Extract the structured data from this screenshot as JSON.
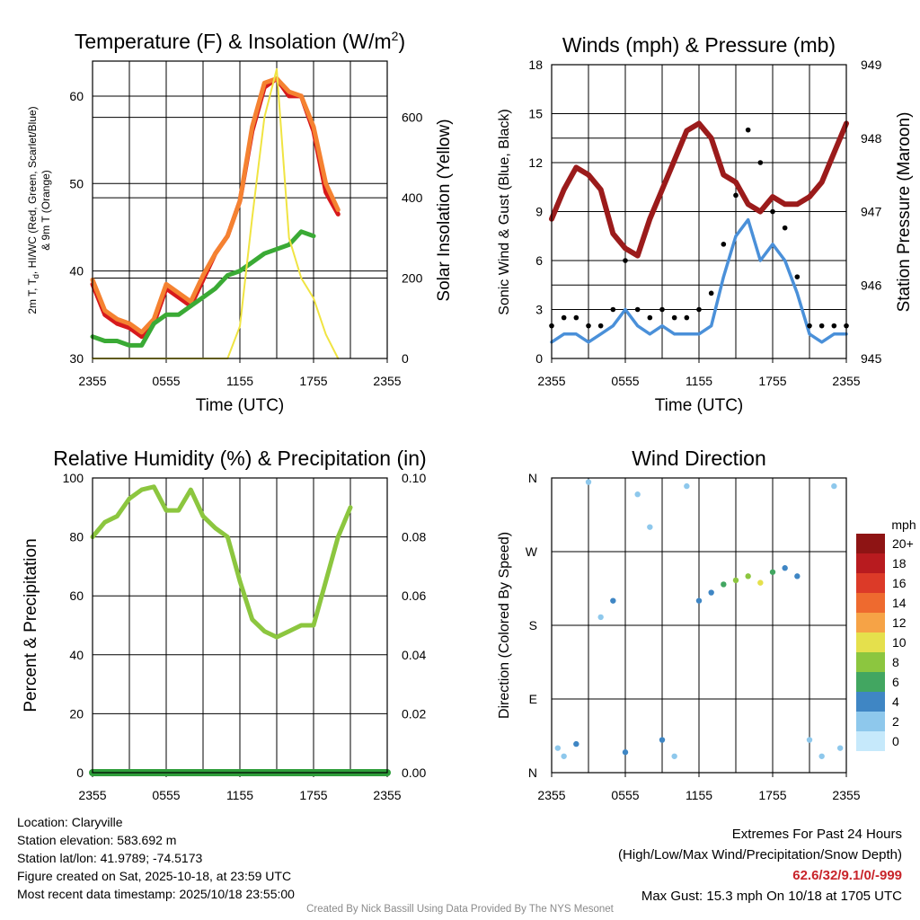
{
  "chart_data": [
    {
      "type": "line",
      "title": "Temperature (F) & Insolation (W/m",
      "title_sup": "2",
      "title_end": ")",
      "xlabel": "Time (UTC)",
      "ylabel_lines": [
        "2m T, T",
        "d",
        ", HI/WC (Red, Green, Scarlet/Blue)",
        "& 9m T (Orange)"
      ],
      "y2label": "Solar Insolation (Yellow)",
      "x_ticks": [
        "2355",
        "0555",
        "1155",
        "1755",
        "2355"
      ],
      "ylim": [
        30,
        64
      ],
      "y_ticks": [
        30,
        40,
        50,
        60
      ],
      "y2lim": [
        0,
        740
      ],
      "y2_ticks": [
        0,
        200,
        400,
        600
      ],
      "series": [
        {
          "name": "2m T",
          "color": "#d7191c",
          "x": [
            0,
            1,
            2,
            3,
            4,
            5,
            6,
            7,
            8,
            9,
            10,
            11,
            12,
            13,
            14,
            15,
            16,
            17,
            18,
            19,
            20,
            21,
            22,
            23,
            24
          ],
          "values": [
            38.5,
            35,
            34,
            33.5,
            32.5,
            34,
            38,
            37,
            36,
            39,
            42,
            44,
            48,
            56,
            61,
            62,
            60,
            60,
            56,
            49,
            46.5,
            null,
            null,
            null,
            null
          ]
        },
        {
          "name": "9m T",
          "color": "#f58231",
          "x": [
            0,
            1,
            2,
            3,
            4,
            5,
            6,
            7,
            8,
            9,
            10,
            11,
            12,
            13,
            14,
            15,
            16,
            17,
            18,
            19,
            20,
            21,
            22,
            23,
            24
          ],
          "values": [
            39,
            35.5,
            34.5,
            34,
            33,
            34.5,
            38.5,
            37.5,
            36.5,
            39.5,
            42,
            44,
            48,
            56.5,
            61.5,
            62,
            60.5,
            60,
            56.5,
            50,
            47,
            null,
            null,
            null,
            null
          ]
        },
        {
          "name": "Td",
          "color": "#3aaa35",
          "x": [
            0,
            1,
            2,
            3,
            4,
            5,
            6,
            7,
            8,
            9,
            10,
            11,
            12,
            13,
            14,
            15,
            16,
            17,
            18,
            19,
            20,
            21,
            22,
            23,
            24
          ],
          "values": [
            32.5,
            32,
            32,
            31.5,
            31.5,
            34,
            35,
            35,
            36,
            37,
            38,
            39.5,
            40,
            41,
            42,
            42.5,
            43,
            44.5,
            44,
            null,
            null,
            null,
            null,
            null,
            null
          ]
        },
        {
          "name": "Solar Insolation",
          "color": "#f0e442",
          "axis": "y2",
          "x": [
            0,
            1,
            2,
            3,
            4,
            5,
            6,
            7,
            8,
            9,
            10,
            11,
            12,
            13,
            14,
            15,
            16,
            17,
            18,
            19,
            20,
            21,
            22,
            23,
            24
          ],
          "values": [
            0,
            0,
            0,
            0,
            0,
            0,
            0,
            0,
            0,
            0,
            0,
            0,
            80,
            350,
            600,
            720,
            300,
            200,
            150,
            60,
            0,
            null,
            null,
            null,
            null
          ]
        }
      ]
    },
    {
      "type": "line",
      "title": "Winds (mph) & Pressure (mb)",
      "xlabel": "Time (UTC)",
      "ylabel": "Sonic Wind & Gust (Blue, Black)",
      "y2label": "Station Pressure (Maroon)",
      "x_ticks": [
        "2355",
        "0555",
        "1155",
        "1755",
        "2355"
      ],
      "ylim": [
        0,
        18
      ],
      "y_ticks": [
        0,
        3,
        6,
        9,
        12,
        15,
        18
      ],
      "y2lim": [
        945,
        949
      ],
      "y2_ticks": [
        945,
        946,
        947,
        948,
        949
      ],
      "series": [
        {
          "name": "Sonic Wind",
          "color": "#4a90d9",
          "x": [
            0,
            1,
            2,
            3,
            4,
            5,
            6,
            7,
            8,
            9,
            10,
            11,
            12,
            13,
            14,
            15,
            16,
            17,
            18,
            19,
            20,
            21,
            22,
            23,
            24
          ],
          "values": [
            1,
            1.5,
            1.5,
            1,
            1.5,
            2,
            3,
            2,
            1.5,
            2,
            1.5,
            1.5,
            1.5,
            2,
            5,
            7.5,
            8.5,
            6,
            7,
            6,
            4,
            1.5,
            1,
            1.5,
            1.5
          ]
        },
        {
          "name": "Gust",
          "color": "#000000",
          "kind": "scatter",
          "x": [
            0,
            1,
            2,
            3,
            4,
            5,
            6,
            7,
            8,
            9,
            10,
            11,
            12,
            13,
            14,
            15,
            16,
            17,
            18,
            19,
            20,
            21,
            22,
            23,
            24
          ],
          "values": [
            2,
            2.5,
            2.5,
            2,
            2,
            3,
            6,
            3,
            2.5,
            3,
            2.5,
            2.5,
            3,
            4,
            7,
            10,
            14,
            12,
            9,
            8,
            5,
            2,
            2,
            2,
            2
          ]
        },
        {
          "name": "Station Pressure",
          "color": "#9b1b1b",
          "axis": "y2",
          "x": [
            0,
            1,
            2,
            3,
            4,
            5,
            6,
            7,
            8,
            9,
            10,
            11,
            12,
            13,
            14,
            15,
            16,
            17,
            18,
            19,
            20,
            21,
            22,
            23,
            24
          ],
          "values": [
            946.9,
            947.3,
            947.6,
            947.5,
            947.3,
            946.7,
            946.5,
            946.4,
            946.9,
            947.3,
            947.7,
            948.1,
            948.2,
            948.0,
            947.5,
            947.4,
            947.1,
            947.0,
            947.2,
            947.1,
            947.1,
            947.2,
            947.4,
            947.8,
            948.2
          ]
        }
      ]
    },
    {
      "type": "line",
      "title": "Relative Humidity (%) & Precipitation (in)",
      "ylabel": "Percent & Precipitation",
      "x_ticks": [
        "2355",
        "0555",
        "1155",
        "1755",
        "2355"
      ],
      "ylim": [
        0,
        100
      ],
      "y_ticks": [
        0,
        20,
        40,
        60,
        80,
        100
      ],
      "y2lim": [
        0,
        0.1
      ],
      "y2_ticks": [
        "0.00",
        "0.02",
        "0.04",
        "0.06",
        "0.08",
        "0.10"
      ],
      "series": [
        {
          "name": "Relative Humidity",
          "color": "#8cc63f",
          "x": [
            0,
            1,
            2,
            3,
            4,
            5,
            6,
            7,
            8,
            9,
            10,
            11,
            12,
            13,
            14,
            15,
            16,
            17,
            18,
            19,
            20,
            21,
            22,
            23,
            24
          ],
          "values": [
            80,
            85,
            87,
            93,
            96,
            97,
            89,
            89,
            96,
            87,
            83,
            80,
            65,
            52,
            48,
            46,
            48,
            50,
            50,
            65,
            80,
            90,
            null,
            null,
            null
          ]
        },
        {
          "name": "Precipitation",
          "color": "#2e9e3a",
          "axis": "y2",
          "x": [
            0,
            24
          ],
          "values": [
            0,
            0
          ]
        }
      ]
    },
    {
      "type": "scatter",
      "title": "Wind Direction",
      "ylabel": "Direction (Colored By Speed)",
      "x_ticks": [
        "2355",
        "0555",
        "1155",
        "1755",
        "2355"
      ],
      "y_ticks": [
        "N",
        "E",
        "S",
        "W",
        "N"
      ],
      "ylim": [
        0,
        360
      ],
      "colorbar": {
        "title": "mph",
        "labels": [
          "0",
          "2",
          "4",
          "6",
          "8",
          "10",
          "12",
          "14",
          "16",
          "18",
          "20+"
        ],
        "colors": [
          "#c6e9fb",
          "#8ec8ec",
          "#3f86c4",
          "#42a661",
          "#8cc63f",
          "#e5e04c",
          "#f6a346",
          "#ee6a2f",
          "#dc3a28",
          "#b81b1f",
          "#8e1414"
        ]
      },
      "points": [
        {
          "x": 0.5,
          "y": 30,
          "s": 1
        },
        {
          "x": 1.0,
          "y": 20,
          "s": 2
        },
        {
          "x": 2.0,
          "y": 35,
          "s": 3
        },
        {
          "x": 3.0,
          "y": 355,
          "s": 1
        },
        {
          "x": 4.0,
          "y": 190,
          "s": 2
        },
        {
          "x": 5.0,
          "y": 210,
          "s": 3
        },
        {
          "x": 6.0,
          "y": 25,
          "s": 4
        },
        {
          "x": 7.0,
          "y": 340,
          "s": 1
        },
        {
          "x": 8.0,
          "y": 300,
          "s": 2
        },
        {
          "x": 9.0,
          "y": 40,
          "s": 3
        },
        {
          "x": 10.0,
          "y": 20,
          "s": 2
        },
        {
          "x": 11.0,
          "y": 350,
          "s": 1
        },
        {
          "x": 12.0,
          "y": 210,
          "s": 3
        },
        {
          "x": 13.0,
          "y": 220,
          "s": 4
        },
        {
          "x": 14.0,
          "y": 230,
          "s": 5
        },
        {
          "x": 15.0,
          "y": 235,
          "s": 7
        },
        {
          "x": 16.0,
          "y": 240,
          "s": 8
        },
        {
          "x": 17.0,
          "y": 232,
          "s": 9
        },
        {
          "x": 18.0,
          "y": 245,
          "s": 6
        },
        {
          "x": 19.0,
          "y": 250,
          "s": 4
        },
        {
          "x": 20.0,
          "y": 240,
          "s": 3
        },
        {
          "x": 21.0,
          "y": 40,
          "s": 1
        },
        {
          "x": 22.0,
          "y": 20,
          "s": 2
        },
        {
          "x": 23.0,
          "y": 350,
          "s": 1
        },
        {
          "x": 23.5,
          "y": 30,
          "s": 2
        }
      ]
    }
  ],
  "info": {
    "location": "Location: Claryville",
    "elevation": "Station elevation: 583.692 m",
    "latlon": "Station lat/lon: 41.9789; -74.5173",
    "created": "Figure created on Sat, 2025-10-18, at 23:59 UTC",
    "recent": "Most recent data timestamp: 2025/10/18 23:55:00"
  },
  "extremes": {
    "title": "Extremes For Past 24 Hours",
    "subtitle": "(High/Low/Max Wind/Precipitation/Snow Depth)",
    "values": "62.6/32/9.1/0/-999",
    "max_gust": "Max Gust: 15.3 mph On 10/18 at 1705 UTC"
  },
  "credit": "Created By Nick Bassill Using Data Provided By The NYS Mesonet"
}
